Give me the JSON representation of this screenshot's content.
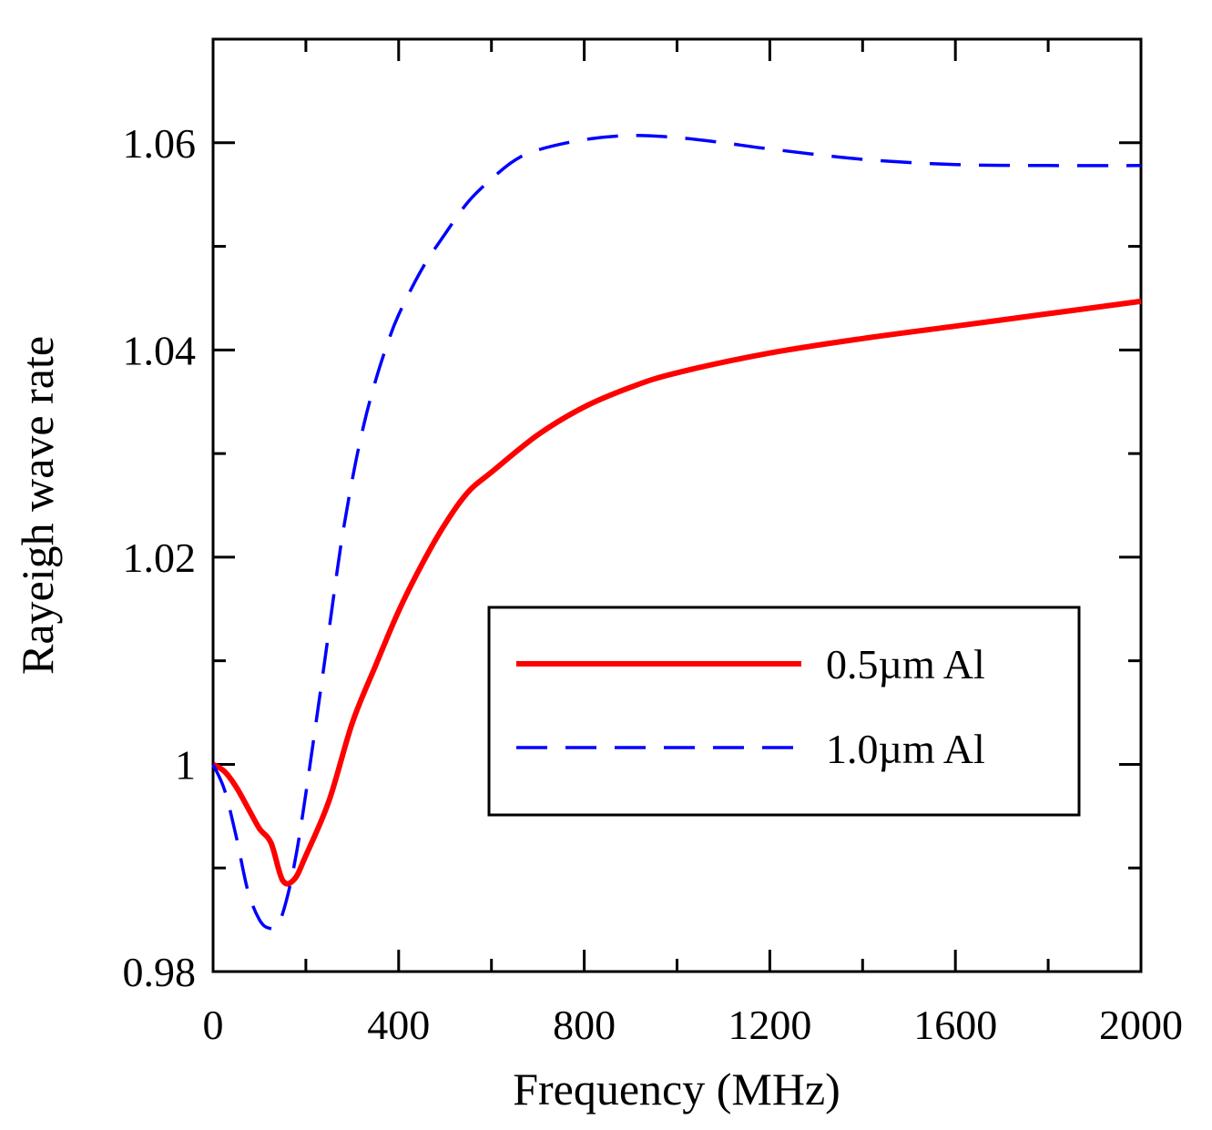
{
  "chart_data": {
    "type": "line",
    "title": "",
    "xlabel": "Frequency (MHz)",
    "ylabel": "Rayeigh wave rate",
    "xlim": [
      0,
      2000
    ],
    "ylim": [
      0.98,
      1.07
    ],
    "xticks": [
      0,
      400,
      800,
      1200,
      1600,
      2000
    ],
    "xtick_labels": [
      "0",
      "400",
      "800",
      "1200",
      "1600",
      "2000"
    ],
    "yticks": [
      0.98,
      1.0,
      1.02,
      1.04,
      1.06
    ],
    "ytick_labels": [
      "0.98",
      "1",
      "1.02",
      "1.04",
      "1.06"
    ],
    "grid": false,
    "legend_position": "lower-right",
    "series": [
      {
        "name": "0.5µm Al",
        "color": "#ff0000",
        "style": "solid",
        "x": [
          0,
          25,
          50,
          75,
          100,
          125,
          150,
          175,
          200,
          250,
          300,
          350,
          400,
          450,
          500,
          550,
          600,
          700,
          800,
          900,
          1000,
          1200,
          1400,
          1600,
          1800,
          2000
        ],
        "y": [
          1.0,
          0.9993,
          0.9978,
          0.9958,
          0.9938,
          0.9924,
          0.9888,
          0.9889,
          0.9912,
          0.9965,
          1.004,
          1.0095,
          1.0148,
          1.0193,
          1.0232,
          1.0263,
          1.0282,
          1.0318,
          1.0345,
          1.0364,
          1.0378,
          1.0397,
          1.0411,
          1.0423,
          1.0435,
          1.0447
        ]
      },
      {
        "name": "1.0µm Al",
        "color": "#0000ff",
        "style": "dashed",
        "x": [
          0,
          25,
          50,
          75,
          100,
          120,
          140,
          160,
          180,
          200,
          225,
          250,
          275,
          300,
          325,
          350,
          375,
          400,
          450,
          500,
          550,
          600,
          650,
          700,
          800,
          900,
          1000,
          1100,
          1200,
          1400,
          1600,
          1800,
          2000
        ],
        "y": [
          1.0,
          0.9975,
          0.993,
          0.9878,
          0.985,
          0.9842,
          0.9845,
          0.9872,
          0.9915,
          0.9972,
          1.005,
          1.013,
          1.021,
          1.0275,
          1.0328,
          1.037,
          1.0405,
          1.0434,
          1.0478,
          1.0512,
          1.0543,
          1.0565,
          1.0583,
          1.0593,
          1.0603,
          1.0607,
          1.0605,
          1.06,
          1.0594,
          1.0584,
          1.0579,
          1.0578,
          1.0578
        ]
      }
    ]
  }
}
